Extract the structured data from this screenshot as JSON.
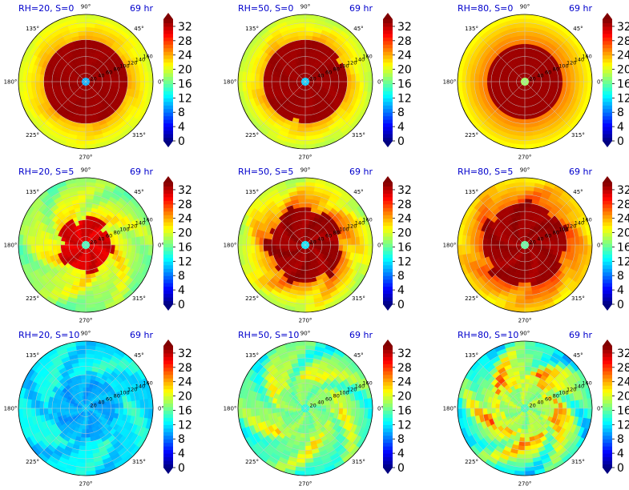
{
  "figure": {
    "colormap": "jet",
    "colors": {
      "title": "#0000cc",
      "dark_core": "#800000",
      "axis_text": "#000000",
      "grid": "#c8c8c8"
    }
  },
  "colorbar": {
    "ticks": [
      "0",
      "4",
      "8",
      "12",
      "16",
      "20",
      "24",
      "28",
      "32"
    ],
    "vmin": 0,
    "vmax": 34
  },
  "polar_axes": {
    "angle_labels": [
      "0°",
      "45°",
      "90°",
      "135°",
      "180°",
      "225°",
      "270°",
      "315°"
    ],
    "radial_labels": [
      "20",
      "40",
      "60",
      "80",
      "100",
      "120",
      "140",
      "160"
    ]
  },
  "chart_data": [
    {
      "type": "heatmap",
      "projection": "polar",
      "title": "RH=20, S=0",
      "time_label": "69 hr",
      "rh": 20,
      "s": 0,
      "core_level": 33,
      "core_extent": 0.62,
      "ring_level": 24,
      "outer_level": 20,
      "eye_level": 10,
      "asymmetry": 0.08
    },
    {
      "type": "heatmap",
      "projection": "polar",
      "title": "RH=50, S=0",
      "time_label": "69 hr",
      "rh": 50,
      "s": 0,
      "core_level": 33,
      "core_extent": 0.62,
      "ring_level": 24,
      "outer_level": 19,
      "eye_level": 11,
      "asymmetry": 0.1
    },
    {
      "type": "heatmap",
      "projection": "polar",
      "title": "RH=80, S=0",
      "time_label": "69 hr",
      "rh": 80,
      "s": 0,
      "core_level": 33,
      "core_extent": 0.55,
      "ring_level": 26,
      "outer_level": 21,
      "eye_level": 18,
      "asymmetry": 0.02
    },
    {
      "type": "heatmap",
      "projection": "polar",
      "title": "RH=20, S=5",
      "time_label": "69 hr",
      "rh": 20,
      "s": 5,
      "core_level": 31,
      "core_extent": 0.4,
      "ring_level": 22,
      "outer_level": 17,
      "eye_level": 15,
      "asymmetry": 0.35
    },
    {
      "type": "heatmap",
      "projection": "polar",
      "title": "RH=50, S=5",
      "time_label": "69 hr",
      "rh": 50,
      "s": 5,
      "core_level": 33,
      "core_extent": 0.55,
      "ring_level": 26,
      "outer_level": 19,
      "eye_level": 12,
      "asymmetry": 0.25
    },
    {
      "type": "heatmap",
      "projection": "polar",
      "title": "RH=80, S=5",
      "time_label": "69 hr",
      "rh": 80,
      "s": 5,
      "core_level": 33,
      "core_extent": 0.62,
      "ring_level": 27,
      "outer_level": 22,
      "eye_level": 16,
      "asymmetry": 0.2
    },
    {
      "type": "heatmap",
      "projection": "polar",
      "title": "RH=20, S=10",
      "time_label": "69 hr",
      "rh": 20,
      "s": 10,
      "core_level": 10,
      "core_extent": 0.5,
      "ring_level": 13,
      "outer_level": 12,
      "eye_level": 11,
      "asymmetry": 0.4
    },
    {
      "type": "heatmap",
      "projection": "polar",
      "title": "RH=50, S=10",
      "time_label": "69 hr",
      "rh": 50,
      "s": 10,
      "core_level": 17,
      "core_extent": 0.4,
      "ring_level": 20,
      "outer_level": 15,
      "eye_level": 14,
      "asymmetry": 0.6
    },
    {
      "type": "heatmap",
      "projection": "polar",
      "title": "RH=80, S=10",
      "time_label": "69 hr",
      "rh": 80,
      "s": 10,
      "core_level": 18,
      "core_extent": 0.4,
      "ring_level": 24,
      "outer_level": 13,
      "eye_level": 15,
      "asymmetry": 0.7
    }
  ]
}
